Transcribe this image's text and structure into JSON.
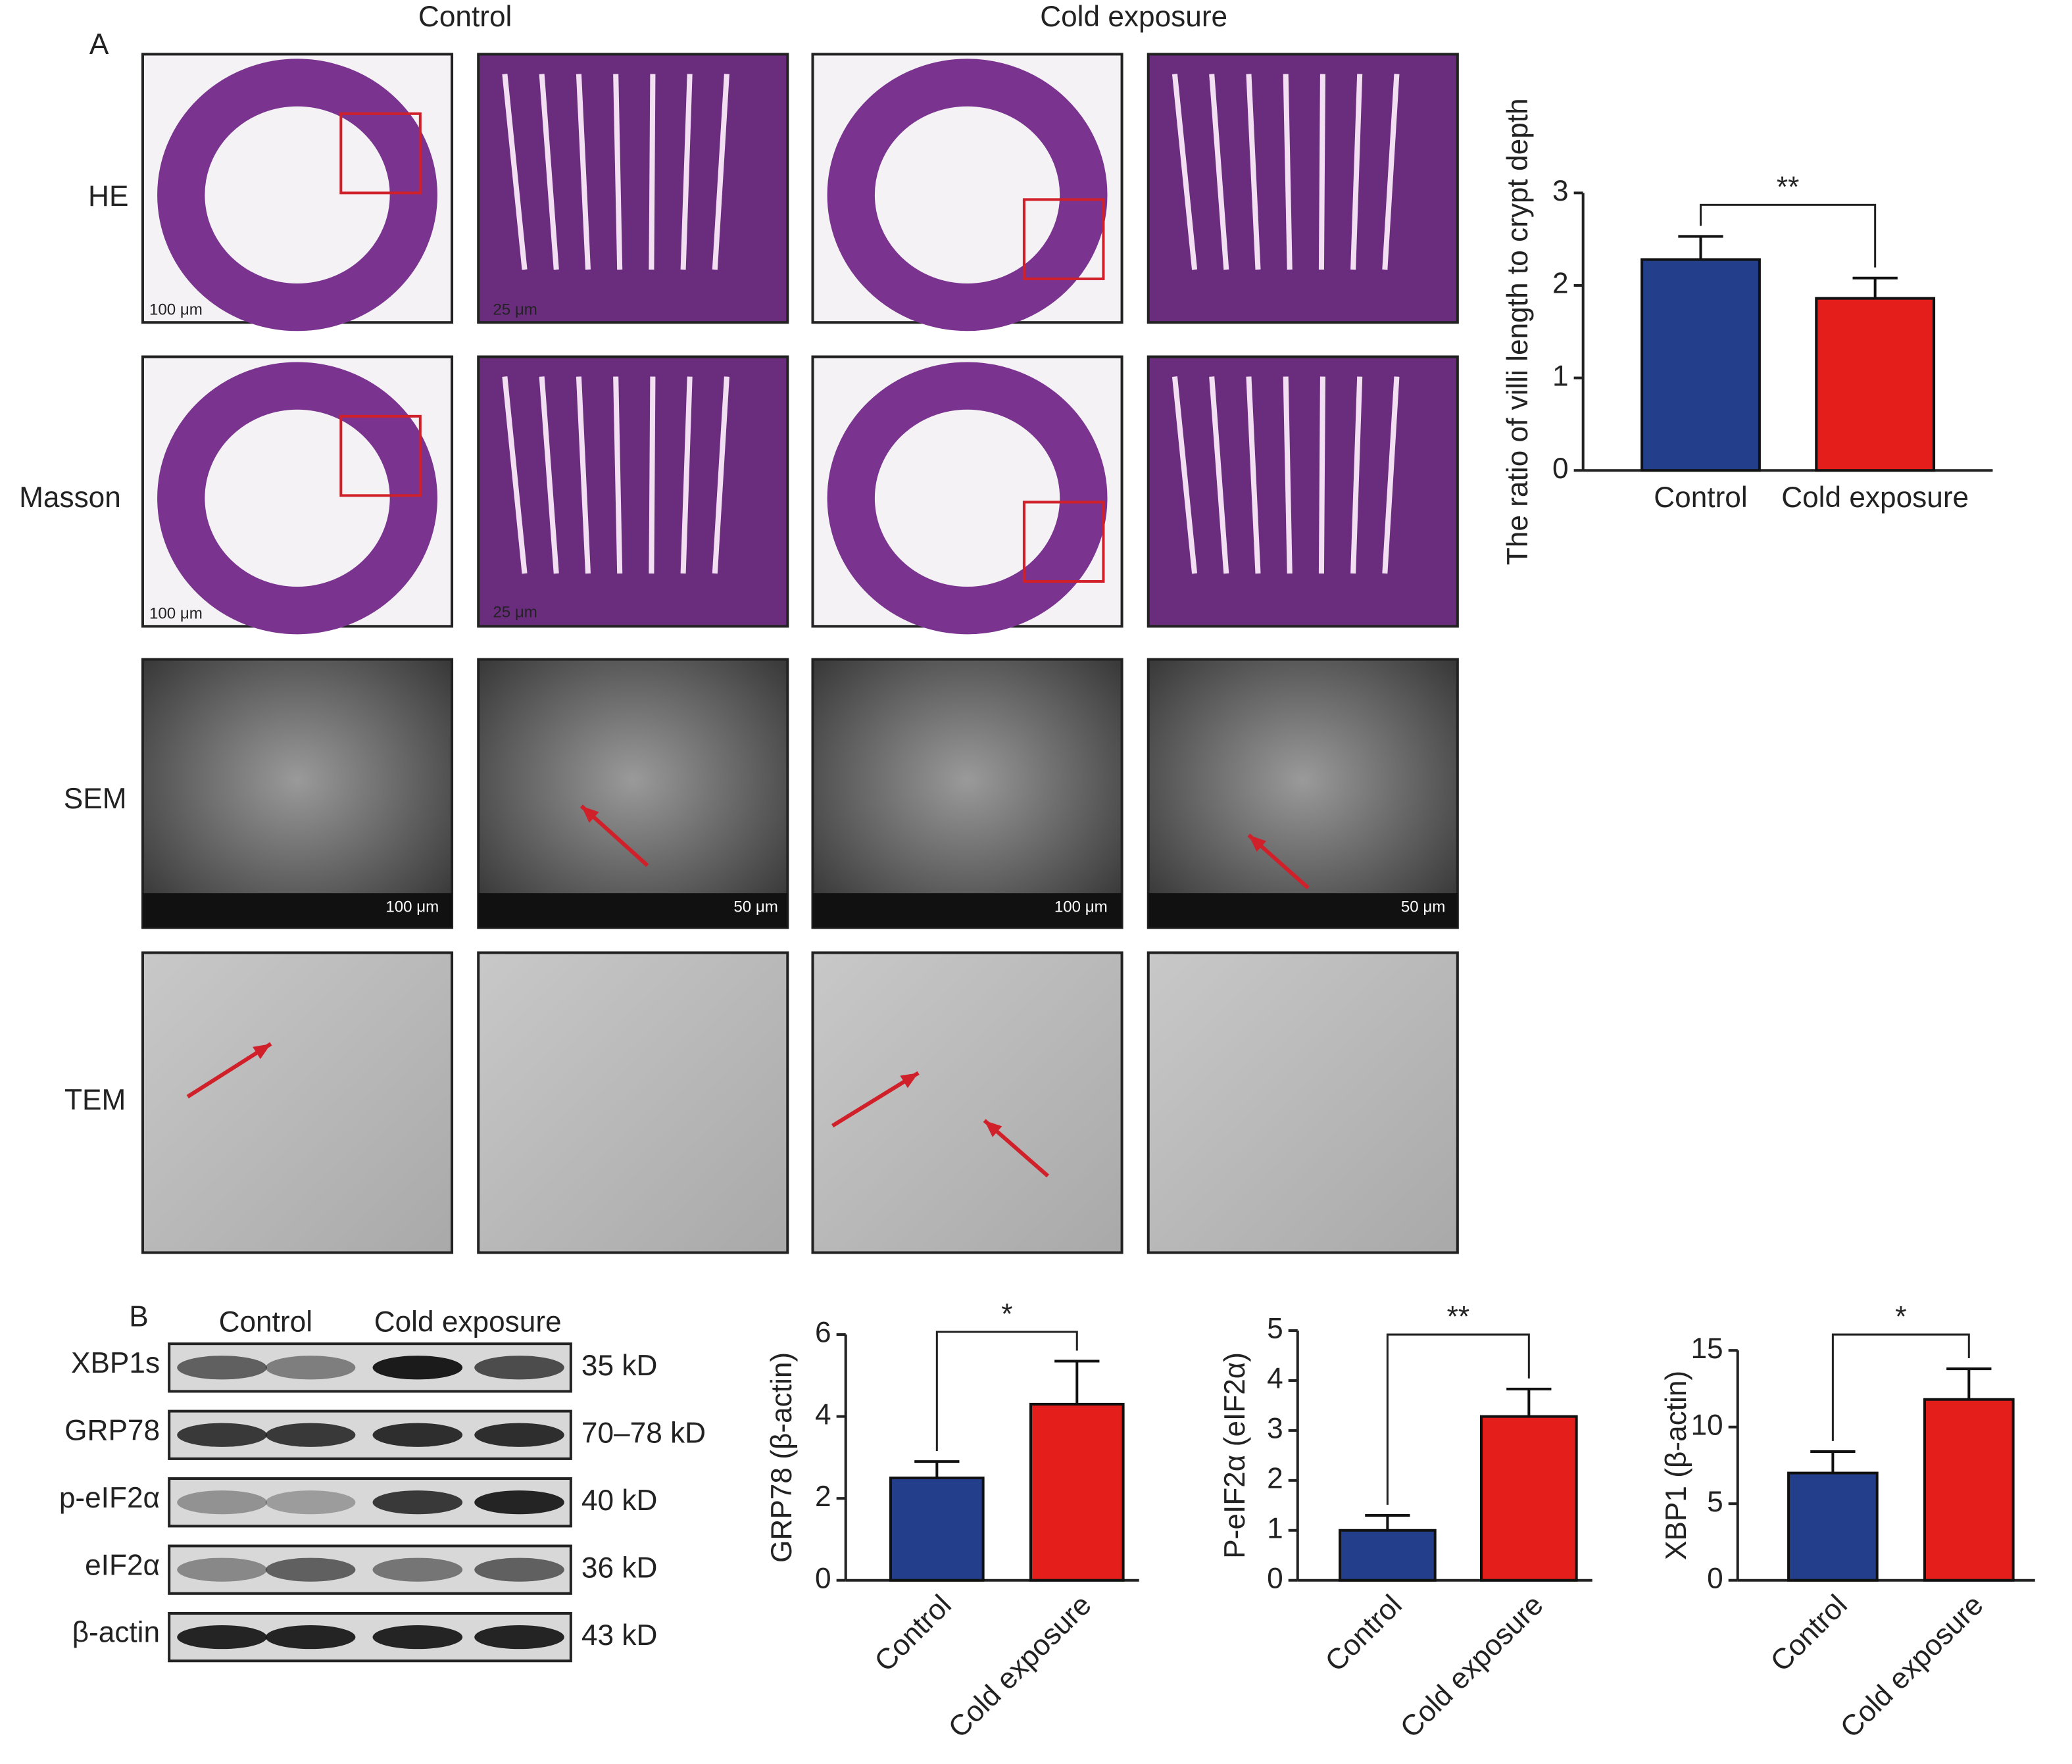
{
  "figure": {
    "panel_a": "A",
    "panel_b": "B",
    "group_labels": [
      "Control",
      "Cold exposure"
    ],
    "row_labels": [
      "HE",
      "Masson",
      "SEM",
      "TEM"
    ],
    "scale_labels": {
      "he": [
        "100 μm",
        "25 μm"
      ],
      "masson": [
        "100 μm",
        "25 μm"
      ],
      "sem": [
        "100 μm",
        "50 μm",
        "100 μm",
        "50 μm"
      ]
    }
  },
  "blot": {
    "lanes": [
      "Control",
      "Cold exposure"
    ],
    "proteins": [
      "XBP1s",
      "GRP78",
      "p-eIF2α",
      "eIF2α",
      "β-actin"
    ],
    "sizes": [
      "35 kD",
      "70–78 kD",
      "40 kD",
      "36 kD",
      "43 kD"
    ]
  },
  "chart_data": [
    {
      "type": "bar",
      "ylabel": "The ratio of villi length to crypt depth",
      "categories": [
        "Control",
        "Cold exposure"
      ],
      "values": [
        2.28,
        1.86
      ],
      "errors": [
        0.25,
        0.22
      ],
      "colors": [
        "#233e8b",
        "#e41f1b"
      ],
      "ylim": [
        0,
        3
      ],
      "yticks": [
        0,
        1,
        2,
        3
      ],
      "annotation": "**"
    },
    {
      "type": "bar",
      "ylabel": "GRP78 (β-actin)",
      "categories": [
        "Control",
        "Cold exposure"
      ],
      "values": [
        2.5,
        4.3
      ],
      "errors": [
        0.4,
        1.05
      ],
      "colors": [
        "#233e8b",
        "#e41f1b"
      ],
      "ylim": [
        0,
        6
      ],
      "yticks": [
        0,
        2,
        4,
        6
      ],
      "annotation": "*"
    },
    {
      "type": "bar",
      "ylabel": "P-eIF2α (eIF2α)",
      "categories": [
        "Control",
        "Cold exposure"
      ],
      "values": [
        1.0,
        3.28
      ],
      "errors": [
        0.3,
        0.55
      ],
      "colors": [
        "#233e8b",
        "#e41f1b"
      ],
      "ylim": [
        0,
        5
      ],
      "yticks": [
        0,
        1,
        2,
        3,
        4,
        5
      ],
      "annotation": "**"
    },
    {
      "type": "bar",
      "ylabel": "XBP1 (β-actin)",
      "categories": [
        "Control",
        "Cold exposure"
      ],
      "values": [
        7.0,
        11.8
      ],
      "errors": [
        1.4,
        2.0
      ],
      "colors": [
        "#233e8b",
        "#e41f1b"
      ],
      "ylim": [
        0,
        15
      ],
      "yticks": [
        0,
        5,
        10,
        15
      ],
      "annotation": "*"
    }
  ]
}
